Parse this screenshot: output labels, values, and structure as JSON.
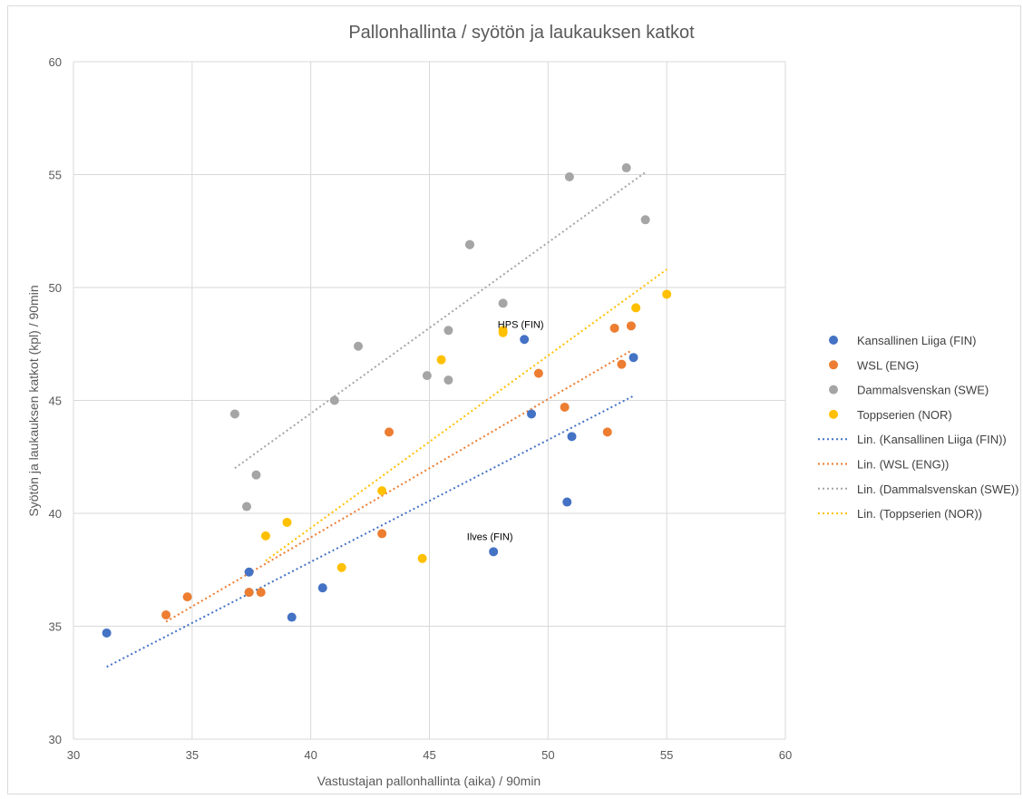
{
  "chart_data": {
    "type": "scatter",
    "title": "Pallonhallinta / syötön ja laukauksen katkot",
    "xlabel": "Vastustajan pallonhallinta (aika) / 90min",
    "ylabel": "Syötön ja laukauksen katkot (kpl) / 90min",
    "xlim": [
      30,
      60
    ],
    "ylim": [
      30,
      60
    ],
    "xticks": [
      30,
      35,
      40,
      45,
      50,
      55,
      60
    ],
    "yticks": [
      30,
      35,
      40,
      45,
      50,
      55,
      60
    ],
    "grid": true,
    "legend_position": "right",
    "series": [
      {
        "name": "Kansallinen Liiga (FIN)",
        "color": "#4472c4",
        "points": [
          [
            31.4,
            34.7
          ],
          [
            37.4,
            37.4
          ],
          [
            37.4,
            36.5
          ],
          [
            39.2,
            35.4
          ],
          [
            40.5,
            36.7
          ],
          [
            47.7,
            38.3
          ],
          [
            49.0,
            47.7
          ],
          [
            49.3,
            44.4
          ],
          [
            50.8,
            40.5
          ],
          [
            51.0,
            43.4
          ],
          [
            53.6,
            46.9
          ]
        ],
        "trend": [
          [
            31.4,
            33.2
          ],
          [
            53.6,
            45.2
          ]
        ]
      },
      {
        "name": "WSL (ENG)",
        "color": "#ed7d31",
        "points": [
          [
            33.9,
            35.5
          ],
          [
            34.8,
            36.3
          ],
          [
            37.4,
            36.5
          ],
          [
            37.9,
            36.5
          ],
          [
            43.0,
            39.1
          ],
          [
            43.3,
            43.6
          ],
          [
            49.6,
            46.2
          ],
          [
            50.7,
            44.7
          ],
          [
            52.5,
            43.6
          ],
          [
            52.8,
            48.2
          ],
          [
            53.1,
            46.6
          ],
          [
            53.5,
            48.3
          ]
        ],
        "trend": [
          [
            33.9,
            35.2
          ],
          [
            53.5,
            47.2
          ]
        ]
      },
      {
        "name": "Dammalsvenskan (SWE)",
        "color": "#a5a5a5",
        "points": [
          [
            36.8,
            44.4
          ],
          [
            37.3,
            40.3
          ],
          [
            37.7,
            41.7
          ],
          [
            41.0,
            45.0
          ],
          [
            42.0,
            47.4
          ],
          [
            44.9,
            46.1
          ],
          [
            45.8,
            48.1
          ],
          [
            45.8,
            45.9
          ],
          [
            46.7,
            51.9
          ],
          [
            46.7,
            51.9
          ],
          [
            48.1,
            49.3
          ],
          [
            50.9,
            54.9
          ],
          [
            53.3,
            55.3
          ],
          [
            54.1,
            53.0
          ]
        ],
        "trend": [
          [
            36.8,
            42.0
          ],
          [
            54.1,
            55.1
          ]
        ]
      },
      {
        "name": "Toppserien (NOR)",
        "color": "#ffc000",
        "points": [
          [
            38.1,
            39.0
          ],
          [
            39.0,
            39.6
          ],
          [
            41.3,
            37.6
          ],
          [
            43.0,
            41.0
          ],
          [
            44.7,
            38.0
          ],
          [
            45.5,
            46.8
          ],
          [
            48.1,
            48.1
          ],
          [
            48.1,
            48.0
          ],
          [
            53.7,
            49.1
          ],
          [
            55.0,
            49.7
          ]
        ],
        "trend": [
          [
            38.1,
            37.9
          ],
          [
            55.0,
            50.8
          ]
        ]
      }
    ],
    "trendlines": [
      {
        "name": "Lin. (Kansallinen Liiga (FIN))",
        "color": "#4472c4"
      },
      {
        "name": "Lin. (WSL (ENG))",
        "color": "#ed7d31"
      },
      {
        "name": "Lin. (Dammalsvenskan (SWE))",
        "color": "#a5a5a5"
      },
      {
        "name": "Lin. (Toppserien (NOR))",
        "color": "#ffc000"
      }
    ],
    "annotations": [
      {
        "text": "HPS (FIN)",
        "x": 49.0,
        "y": 47.7
      },
      {
        "text": "Ilves (FIN)",
        "x": 47.7,
        "y": 38.3
      }
    ]
  }
}
